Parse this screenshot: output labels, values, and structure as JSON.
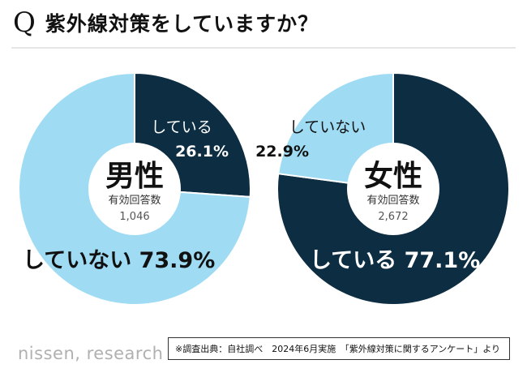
{
  "header": {
    "q_mark": "Q",
    "title": "紫外線対策をしていますか？"
  },
  "colors": {
    "doing": "#0c2d42",
    "not_doing": "#9fdcf4",
    "center_fill": "#ffffff"
  },
  "chart_data": [
    {
      "type": "pie",
      "group": "男性",
      "respondent_label": "有効回答数",
      "respondent_count": "1,046",
      "slices": [
        {
          "label": "している",
          "value": 26.1,
          "value_label": "26.1%"
        },
        {
          "label": "していない",
          "value": 73.9,
          "value_label": "73.9%"
        }
      ]
    },
    {
      "type": "pie",
      "group": "女性",
      "respondent_label": "有効回答数",
      "respondent_count": "2,672",
      "slices": [
        {
          "label": "している",
          "value": 77.1,
          "value_label": "77.1%"
        },
        {
          "label": "していない",
          "value": 22.9,
          "value_label": "22.9%"
        }
      ]
    }
  ],
  "footer": {
    "brand": "nissen, research",
    "note": "※調査出典：自社調べ　2024年6月実施　「紫外線対策に関するアンケート」より"
  }
}
